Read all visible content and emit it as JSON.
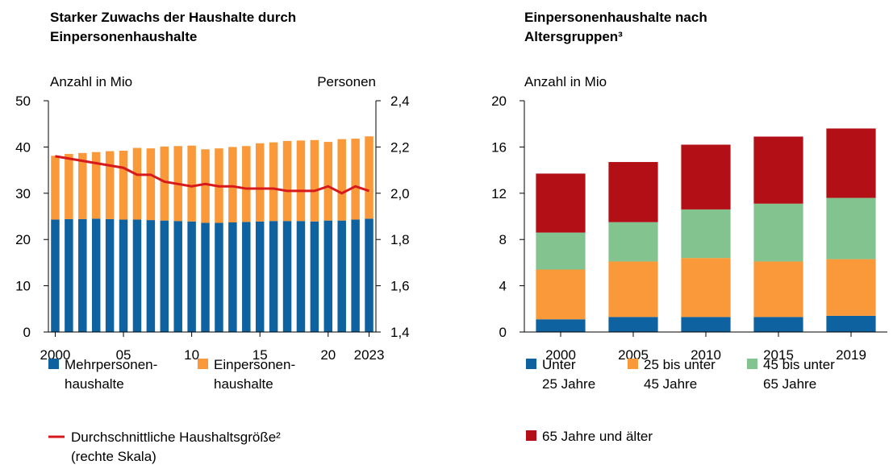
{
  "chart_data": [
    {
      "type": "bar",
      "title": "Starker Zuwachs der Haushalte durch\nEinpersonenhaushalte",
      "ylabel": "Anzahl in Mio",
      "y2label": "Personen",
      "categories": [
        "2000",
        null,
        null,
        null,
        null,
        "05",
        null,
        null,
        null,
        null,
        "10",
        null,
        null,
        null,
        null,
        "15",
        null,
        null,
        null,
        null,
        "20",
        null,
        null,
        "2023"
      ],
      "series": [
        {
          "name": "Mehrpersonen-\nhaushalte",
          "color": "#0f62a0",
          "values": [
            24.3,
            24.4,
            24.4,
            24.5,
            24.4,
            24.3,
            24.3,
            24.2,
            24.1,
            24.0,
            23.9,
            23.6,
            23.6,
            23.7,
            23.8,
            23.9,
            24.0,
            24.0,
            24.0,
            23.9,
            24.1,
            24.1,
            24.3,
            24.5
          ]
        },
        {
          "name": "Einpersonen-\nhaushalte",
          "color": "#f9993a",
          "values": [
            13.8,
            14.1,
            14.3,
            14.4,
            14.7,
            14.9,
            15.5,
            15.5,
            16.0,
            16.2,
            16.4,
            15.9,
            16.1,
            16.3,
            16.4,
            16.9,
            17.0,
            17.3,
            17.4,
            17.6,
            17.0,
            17.6,
            17.5,
            17.8
          ]
        },
        {
          "name": "Durchschnittliche Haushaltsgröße²\n(rechte Skala)",
          "color": "#d7191c",
          "type": "line",
          "axis": "y2",
          "values": [
            2.16,
            2.15,
            2.14,
            2.13,
            2.12,
            2.11,
            2.08,
            2.08,
            2.05,
            2.04,
            2.03,
            2.04,
            2.03,
            2.03,
            2.02,
            2.02,
            2.02,
            2.01,
            2.01,
            2.01,
            2.03,
            2.0,
            2.03,
            2.01
          ]
        }
      ],
      "ylim": [
        0,
        50
      ],
      "yticks": [
        0,
        10,
        20,
        30,
        40,
        50
      ],
      "y2lim": [
        1.4,
        2.4
      ],
      "y2ticks": [
        {
          "value": 1.4,
          "label": "1,4"
        },
        {
          "value": 1.6,
          "label": "1,6"
        },
        {
          "value": 1.8,
          "label": "1,8"
        },
        {
          "value": 2.0,
          "label": "2,0"
        },
        {
          "value": 2.2,
          "label": "2,2"
        },
        {
          "value": 2.4,
          "label": "2,4"
        }
      ]
    },
    {
      "type": "bar",
      "title": "Einpersonenhaushalte nach\nAltersgruppen³",
      "ylabel": "Anzahl in Mio",
      "categories": [
        "2000",
        "2005",
        "2010",
        "2015",
        "2019"
      ],
      "series": [
        {
          "name": "Unter\n25 Jahre",
          "color": "#0f62a0",
          "values": [
            1.1,
            1.3,
            1.3,
            1.3,
            1.4
          ]
        },
        {
          "name": "25 bis unter\n45 Jahre",
          "color": "#f9993a",
          "values": [
            4.3,
            4.8,
            5.1,
            4.8,
            4.9
          ]
        },
        {
          "name": "45 bis unter\n65 Jahre",
          "color": "#82c38f",
          "values": [
            3.2,
            3.4,
            4.2,
            5.0,
            5.3
          ]
        },
        {
          "name": "65 Jahre und älter",
          "color": "#b21016",
          "values": [
            5.1,
            5.2,
            5.6,
            5.8,
            6.0
          ]
        }
      ],
      "ylim": [
        0,
        20
      ],
      "yticks": [
        0,
        4,
        8,
        12,
        16,
        20
      ]
    }
  ]
}
